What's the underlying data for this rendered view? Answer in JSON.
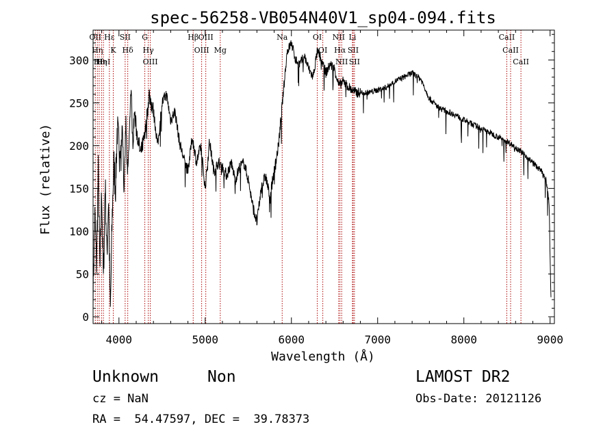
{
  "chart_data": {
    "type": "line",
    "title": "spec-56258-VB054N40V1_sp04-094.fits",
    "xlabel": "Wavelength (Å)",
    "ylabel": "Flux (relative)",
    "xlim": [
      3700,
      9050
    ],
    "ylim": [
      -8,
      335
    ],
    "xticks": [
      "4000",
      "5000",
      "6000",
      "7000",
      "8000",
      "9000"
    ],
    "yticks": [
      "0",
      "50",
      "100",
      "150",
      "200",
      "250",
      "300"
    ],
    "spectrum_color": "#000000",
    "line_marker_color": "#aa0000",
    "spectrum": {
      "x": [
        3700,
        3720,
        3740,
        3760,
        3780,
        3800,
        3820,
        3840,
        3860,
        3880,
        3900,
        3920,
        3940,
        3960,
        3980,
        4000,
        4020,
        4040,
        4060,
        4080,
        4100,
        4120,
        4140,
        4160,
        4180,
        4200,
        4250,
        4300,
        4350,
        4400,
        4450,
        4500,
        4550,
        4600,
        4650,
        4700,
        4750,
        4800,
        4850,
        4900,
        4950,
        5000,
        5050,
        5100,
        5150,
        5200,
        5250,
        5300,
        5350,
        5400,
        5450,
        5500,
        5550,
        5600,
        5650,
        5700,
        5750,
        5800,
        5850,
        5900,
        5950,
        6000,
        6050,
        6100,
        6150,
        6200,
        6250,
        6300,
        6350,
        6400,
        6450,
        6500,
        6550,
        6600,
        6650,
        6700,
        6750,
        6800,
        6900,
        7000,
        7100,
        7200,
        7300,
        7400,
        7500,
        7600,
        7700,
        7800,
        7900,
        8000,
        8100,
        8200,
        8300,
        8400,
        8500,
        8600,
        8700,
        8800,
        8900,
        8950,
        8970,
        8990,
        9000,
        9010
      ],
      "y": [
        30,
        120,
        60,
        170,
        50,
        150,
        40,
        160,
        70,
        140,
        0,
        110,
        180,
        150,
        220,
        200,
        190,
        230,
        140,
        230,
        160,
        210,
        270,
        200,
        240,
        220,
        190,
        210,
        260,
        240,
        200,
        250,
        260,
        230,
        240,
        205,
        185,
        170,
        210,
        180,
        200,
        150,
        205,
        170,
        180,
        175,
        165,
        180,
        160,
        175,
        180,
        160,
        130,
        110,
        150,
        165,
        140,
        170,
        200,
        255,
        310,
        320,
        300,
        295,
        305,
        290,
        280,
        310,
        300,
        285,
        295,
        290,
        270,
        275,
        270,
        265,
        262,
        262,
        262,
        265,
        268,
        275,
        280,
        285,
        278,
        255,
        245,
        240,
        236,
        230,
        225,
        220,
        215,
        210,
        205,
        198,
        190,
        180,
        170,
        160,
        150,
        130,
        70,
        20
      ]
    },
    "line_markers": [
      {
        "x": 3726,
        "label": "OII"
      },
      {
        "x": 3750,
        "label": "Hη"
      },
      {
        "x": 3771,
        "label": "Hθ"
      },
      {
        "x": 3798,
        "label": "Hη"
      },
      {
        "x": 3820,
        "label": "HeI"
      },
      {
        "x": 3889,
        "label": "Hε"
      },
      {
        "x": 3934,
        "label": "K"
      },
      {
        "x": 4072,
        "label": "SII"
      },
      {
        "x": 4102,
        "label": "Hδ"
      },
      {
        "x": 4300,
        "label": "G"
      },
      {
        "x": 4340,
        "label": "Hγ"
      },
      {
        "x": 4363,
        "label": "OIII"
      },
      {
        "x": 4861,
        "label": "Hβ"
      },
      {
        "x": 4959,
        "label": "OIII"
      },
      {
        "x": 5007,
        "label": "OIII"
      },
      {
        "x": 5175,
        "label": "Mg"
      },
      {
        "x": 5893,
        "label": "Na"
      },
      {
        "x": 6300,
        "label": "OI"
      },
      {
        "x": 6364,
        "label": "OI"
      },
      {
        "x": 6548,
        "label": "NII"
      },
      {
        "x": 6563,
        "label": "Hα"
      },
      {
        "x": 6583,
        "label": "NII"
      },
      {
        "x": 6708,
        "label": "Li"
      },
      {
        "x": 6716,
        "label": "SII"
      },
      {
        "x": 6731,
        "label": "SII"
      },
      {
        "x": 8498,
        "label": "CaII"
      },
      {
        "x": 8542,
        "label": "CaII"
      },
      {
        "x": 8662,
        "label": "CaII"
      }
    ]
  },
  "footer": {
    "object_class": "Unknown",
    "object_subclass": "Non",
    "survey": "LAMOST DR2",
    "cz": "cz = NaN",
    "obs_date": "Obs-Date: 20121126",
    "coords": "RA =  54.47597, DEC =  39.78373"
  }
}
